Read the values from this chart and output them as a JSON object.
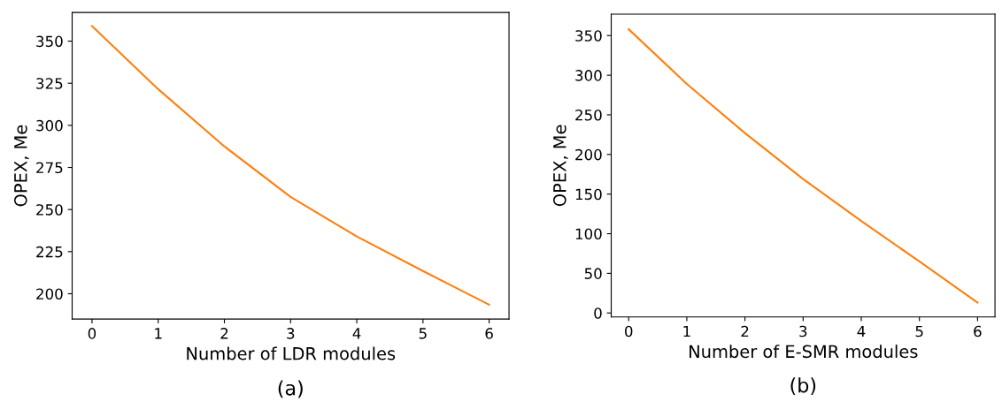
{
  "chart_data": [
    {
      "type": "line",
      "xlabel": "Number of LDR modules",
      "ylabel": "OPEX, Me",
      "x": [
        0,
        1,
        2,
        3,
        4,
        5,
        6
      ],
      "series": [
        {
          "color": "#ff7f0e",
          "values": [
            359,
            321.5,
            287.5,
            257.5,
            234,
            213.5,
            193.5
          ]
        }
      ],
      "xlim": [
        -0.3,
        6.3
      ],
      "xticks": [
        0,
        1,
        2,
        3,
        4,
        5,
        6
      ],
      "ylim": [
        185,
        367
      ],
      "yticks": [
        200,
        225,
        250,
        275,
        300,
        325,
        350
      ],
      "grid": false,
      "legend": false,
      "annotations": [
        "(a)"
      ]
    },
    {
      "type": "line",
      "xlabel": "Number of E-SMR modules",
      "ylabel": "OPEX, Me",
      "x": [
        0,
        1,
        2,
        3,
        4,
        5,
        6
      ],
      "series": [
        {
          "color": "#ff7f0e",
          "values": [
            358,
            289,
            227,
            169,
            116,
            65,
            13
          ]
        }
      ],
      "xlim": [
        -0.3,
        6.3
      ],
      "xticks": [
        0,
        1,
        2,
        3,
        4,
        5,
        6
      ],
      "ylim": [
        -5,
        377
      ],
      "yticks": [
        0,
        50,
        100,
        150,
        200,
        250,
        300,
        350
      ],
      "grid": false,
      "legend": false,
      "annotations": [
        "(b)"
      ]
    }
  ]
}
